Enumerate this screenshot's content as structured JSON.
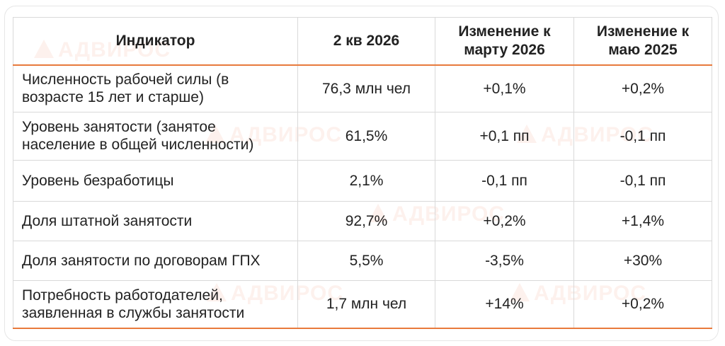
{
  "colors": {
    "accent": "#e87a3c",
    "positive": "#5aa35a",
    "negative": "#b01818",
    "text": "#222222",
    "watermark": "#e87850"
  },
  "watermark_text": "АДВИРОС",
  "table": {
    "headers": [
      "Индикатор",
      "2 кв 2026",
      "Изменение к марту 2026",
      "Изменение к маю 2025"
    ],
    "rows": [
      {
        "indicator": "Численность рабочей силы (в возрасте 15 лет и старше)",
        "value": "76,3 млн чел",
        "change_mar_2026": "+0,1%",
        "change_mar_2026_sign": "positive",
        "change_may_2025": "+0,2%",
        "change_may_2025_sign": "positive"
      },
      {
        "indicator": "Уровень занятости (занятое население в общей численности)",
        "value": "61,5%",
        "change_mar_2026": "+0,1 пп",
        "change_mar_2026_sign": "positive",
        "change_may_2025": "-0,1 пп",
        "change_may_2025_sign": "negative"
      },
      {
        "indicator": "Уровень безработицы",
        "value": "2,1%",
        "change_mar_2026": "-0,1 пп",
        "change_mar_2026_sign": "negative",
        "change_may_2025": "-0,1 пп",
        "change_may_2025_sign": "negative"
      },
      {
        "indicator": "Доля штатной занятости",
        "value": "92,7%",
        "change_mar_2026": "+0,2%",
        "change_mar_2026_sign": "positive",
        "change_may_2025": "+1,4%",
        "change_may_2025_sign": "positive"
      },
      {
        "indicator": "Доля занятости по договорам ГПХ",
        "value": "5,5%",
        "change_mar_2026": "-3,5%",
        "change_mar_2026_sign": "negative",
        "change_may_2025": "+30%",
        "change_may_2025_sign": "positive"
      },
      {
        "indicator": "Потребность работодателей, заявленная в службы занятости",
        "value": "1,7 млн чел",
        "change_mar_2026": "+14%",
        "change_mar_2026_sign": "positive",
        "change_may_2025": "+0,2%",
        "change_may_2025_sign": "positive"
      }
    ]
  }
}
